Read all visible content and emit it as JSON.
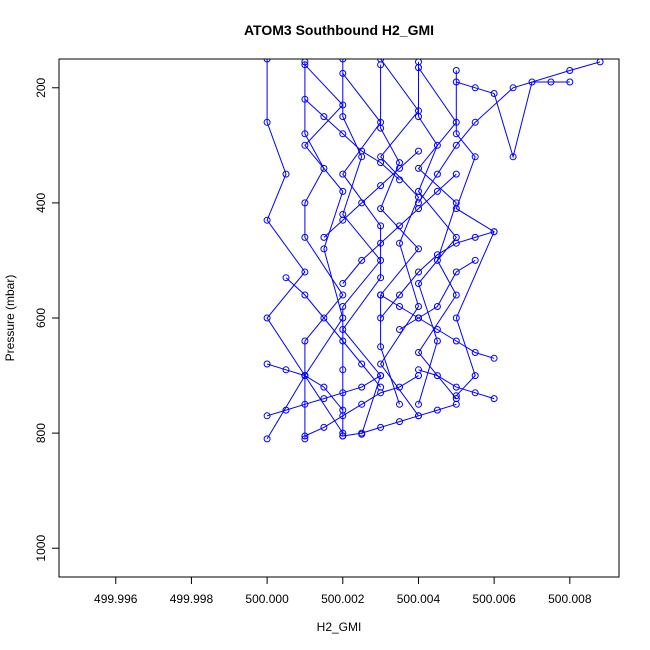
{
  "chart_data": {
    "type": "line",
    "title": "ATOM3 Southbound H2_GMI",
    "xlabel": "H2_GMI",
    "ylabel": "Pressure (mbar)",
    "xlim": [
      499.9945,
      500.0093
    ],
    "ylim": [
      1050,
      150
    ],
    "y_inverted": true,
    "x_ticks": [
      499.996,
      499.998,
      500.0,
      500.002,
      500.004,
      500.006,
      500.008
    ],
    "x_tick_labels": [
      "499.996",
      "499.998",
      "500.000",
      "500.002",
      "500.004",
      "500.006",
      "500.008"
    ],
    "y_ticks": [
      200,
      400,
      600,
      800,
      1000
    ],
    "y_tick_labels": [
      "200",
      "400",
      "600",
      "800",
      "1000"
    ],
    "grid": false,
    "legend": "none",
    "series_color": "#0000ff",
    "marker": "open-circle",
    "series": [
      {
        "x": [
          500.0,
          500.0,
          500.0005,
          500.0,
          500.001,
          500.0,
          500.001,
          500.0
        ],
        "y": [
          150,
          260,
          350,
          430,
          520,
          600,
          700,
          810
        ]
      },
      {
        "x": [
          500.001,
          500.001,
          500.0015,
          500.001,
          500.001,
          500.002,
          500.001,
          500.001
        ],
        "y": [
          155,
          280,
          340,
          400,
          460,
          560,
          640,
          810
        ]
      },
      {
        "x": [
          500.001,
          500.002,
          500.001,
          500.002,
          500.0015,
          500.002,
          500.001,
          500.002
        ],
        "y": [
          160,
          230,
          300,
          380,
          480,
          600,
          700,
          800
        ]
      },
      {
        "x": [
          500.002,
          500.002,
          500.0025,
          500.002,
          500.003,
          500.002,
          500.002,
          500.002
        ],
        "y": [
          150,
          250,
          320,
          420,
          500,
          580,
          690,
          805
        ]
      },
      {
        "x": [
          500.002,
          500.003,
          500.002,
          500.003,
          500.003,
          500.002,
          500.003,
          500.0025
        ],
        "y": [
          175,
          260,
          350,
          440,
          530,
          620,
          700,
          802
        ]
      },
      {
        "x": [
          500.003,
          500.003,
          500.0035,
          500.003,
          500.004,
          500.003,
          500.003,
          500.0035
        ],
        "y": [
          160,
          270,
          330,
          410,
          480,
          560,
          650,
          750
        ]
      },
      {
        "x": [
          500.003,
          500.004,
          500.003,
          500.004,
          500.0035,
          500.004,
          500.003,
          500.004
        ],
        "y": [
          150,
          240,
          320,
          390,
          470,
          580,
          680,
          770
        ]
      },
      {
        "x": [
          500.004,
          500.004,
          500.0045,
          500.004,
          500.005,
          500.004,
          500.0045,
          500.004
        ],
        "y": [
          155,
          250,
          300,
          380,
          460,
          540,
          640,
          750
        ]
      },
      {
        "x": [
          500.004,
          500.005,
          500.004,
          500.005,
          500.0045,
          500.005,
          500.004,
          500.005
        ],
        "y": [
          165,
          260,
          340,
          400,
          500,
          560,
          660,
          740
        ]
      },
      {
        "x": [
          500.005,
          500.005,
          500.0055,
          500.005,
          500.006,
          500.005,
          500.0055,
          500.005
        ],
        "y": [
          170,
          280,
          320,
          410,
          450,
          600,
          700,
          735
        ]
      },
      {
        "x": [
          500.005,
          500.0055,
          500.006,
          500.0065,
          500.007,
          500.0075,
          500.008
        ],
        "y": [
          190,
          200,
          210,
          320,
          190,
          190,
          190
        ]
      },
      {
        "x": [
          500.0088,
          500.008,
          500.0065,
          500.0055,
          500.005,
          500.0045,
          500.004
        ],
        "y": [
          155,
          170,
          200,
          260,
          300,
          350,
          400
        ]
      },
      {
        "x": [
          500.006,
          500.0055,
          500.005,
          500.0045,
          500.004,
          500.0035,
          500.003
        ],
        "y": [
          670,
          660,
          640,
          620,
          600,
          580,
          560
        ]
      },
      {
        "x": [
          500.006,
          500.0055,
          500.005,
          500.0045,
          500.004
        ],
        "y": [
          740,
          730,
          720,
          700,
          690
        ]
      },
      {
        "x": [
          500.0,
          500.0005,
          500.001,
          500.0015,
          500.002,
          500.0025,
          500.003
        ],
        "y": [
          770,
          760,
          750,
          740,
          730,
          720,
          700
        ]
      },
      {
        "x": [
          500.001,
          500.0015,
          500.002,
          500.0025,
          500.003,
          500.0035,
          500.004
        ],
        "y": [
          805,
          790,
          770,
          750,
          730,
          720,
          700
        ]
      },
      {
        "x": [
          500.002,
          500.0025,
          500.003,
          500.0035,
          500.004,
          500.0045,
          500.005
        ],
        "y": [
          805,
          800,
          790,
          780,
          770,
          760,
          750
        ]
      },
      {
        "x": [
          500.0005,
          500.001,
          500.0015,
          500.002,
          500.0025,
          500.003
        ],
        "y": [
          530,
          560,
          600,
          640,
          680,
          720
        ]
      },
      {
        "x": [
          500.0015,
          500.002,
          500.0025,
          500.003,
          500.0035,
          500.004
        ],
        "y": [
          460,
          430,
          400,
          370,
          340,
          310
        ]
      },
      {
        "x": [
          500.002,
          500.0025,
          500.003,
          500.0035,
          500.004,
          500.0045,
          500.005
        ],
        "y": [
          540,
          500,
          470,
          440,
          410,
          380,
          350
        ]
      },
      {
        "x": [
          500.003,
          500.0035,
          500.004,
          500.0045,
          500.005,
          500.0055,
          500.006
        ],
        "y": [
          600,
          560,
          520,
          490,
          470,
          460,
          450
        ]
      },
      {
        "x": [
          500.0035,
          500.004,
          500.0045,
          500.005,
          500.0055
        ],
        "y": [
          620,
          600,
          580,
          520,
          500
        ]
      },
      {
        "x": [
          500.001,
          500.0015,
          500.002,
          500.0025,
          500.003,
          500.0035
        ],
        "y": [
          220,
          250,
          280,
          310,
          330,
          360
        ]
      },
      {
        "x": [
          500.0,
          500.0005,
          500.001,
          500.0015,
          500.002
        ],
        "y": [
          680,
          690,
          700,
          720,
          760
        ]
      }
    ]
  }
}
